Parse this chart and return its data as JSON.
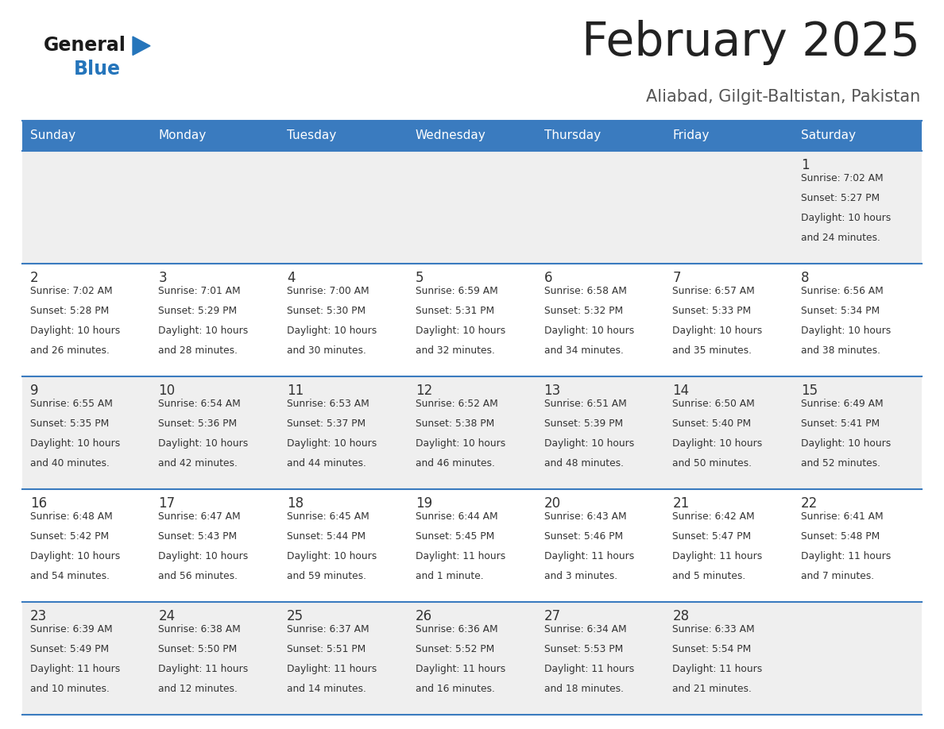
{
  "title": "February 2025",
  "subtitle": "Aliabad, Gilgit-Baltistan, Pakistan",
  "days_of_week": [
    "Sunday",
    "Monday",
    "Tuesday",
    "Wednesday",
    "Thursday",
    "Friday",
    "Saturday"
  ],
  "header_bg": "#3a7bbf",
  "header_text": "#ffffff",
  "cell_bg_odd": "#efefef",
  "cell_bg_even": "#ffffff",
  "cell_border": "#3a7bbf",
  "day_num_color": "#333333",
  "text_color": "#333333",
  "title_color": "#222222",
  "subtitle_color": "#555555",
  "logo_general_color": "#1a1a1a",
  "logo_blue_color": "#2575bb",
  "fig_width": 11.88,
  "fig_height": 9.18,
  "calendar_data": [
    {
      "day": 1,
      "col": 6,
      "row": 0,
      "sunrise": "7:02 AM",
      "sunset": "5:27 PM",
      "daylight_line1": "Daylight: 10 hours",
      "daylight_line2": "and 24 minutes."
    },
    {
      "day": 2,
      "col": 0,
      "row": 1,
      "sunrise": "7:02 AM",
      "sunset": "5:28 PM",
      "daylight_line1": "Daylight: 10 hours",
      "daylight_line2": "and 26 minutes."
    },
    {
      "day": 3,
      "col": 1,
      "row": 1,
      "sunrise": "7:01 AM",
      "sunset": "5:29 PM",
      "daylight_line1": "Daylight: 10 hours",
      "daylight_line2": "and 28 minutes."
    },
    {
      "day": 4,
      "col": 2,
      "row": 1,
      "sunrise": "7:00 AM",
      "sunset": "5:30 PM",
      "daylight_line1": "Daylight: 10 hours",
      "daylight_line2": "and 30 minutes."
    },
    {
      "day": 5,
      "col": 3,
      "row": 1,
      "sunrise": "6:59 AM",
      "sunset": "5:31 PM",
      "daylight_line1": "Daylight: 10 hours",
      "daylight_line2": "and 32 minutes."
    },
    {
      "day": 6,
      "col": 4,
      "row": 1,
      "sunrise": "6:58 AM",
      "sunset": "5:32 PM",
      "daylight_line1": "Daylight: 10 hours",
      "daylight_line2": "and 34 minutes."
    },
    {
      "day": 7,
      "col": 5,
      "row": 1,
      "sunrise": "6:57 AM",
      "sunset": "5:33 PM",
      "daylight_line1": "Daylight: 10 hours",
      "daylight_line2": "and 35 minutes."
    },
    {
      "day": 8,
      "col": 6,
      "row": 1,
      "sunrise": "6:56 AM",
      "sunset": "5:34 PM",
      "daylight_line1": "Daylight: 10 hours",
      "daylight_line2": "and 38 minutes."
    },
    {
      "day": 9,
      "col": 0,
      "row": 2,
      "sunrise": "6:55 AM",
      "sunset": "5:35 PM",
      "daylight_line1": "Daylight: 10 hours",
      "daylight_line2": "and 40 minutes."
    },
    {
      "day": 10,
      "col": 1,
      "row": 2,
      "sunrise": "6:54 AM",
      "sunset": "5:36 PM",
      "daylight_line1": "Daylight: 10 hours",
      "daylight_line2": "and 42 minutes."
    },
    {
      "day": 11,
      "col": 2,
      "row": 2,
      "sunrise": "6:53 AM",
      "sunset": "5:37 PM",
      "daylight_line1": "Daylight: 10 hours",
      "daylight_line2": "and 44 minutes."
    },
    {
      "day": 12,
      "col": 3,
      "row": 2,
      "sunrise": "6:52 AM",
      "sunset": "5:38 PM",
      "daylight_line1": "Daylight: 10 hours",
      "daylight_line2": "and 46 minutes."
    },
    {
      "day": 13,
      "col": 4,
      "row": 2,
      "sunrise": "6:51 AM",
      "sunset": "5:39 PM",
      "daylight_line1": "Daylight: 10 hours",
      "daylight_line2": "and 48 minutes."
    },
    {
      "day": 14,
      "col": 5,
      "row": 2,
      "sunrise": "6:50 AM",
      "sunset": "5:40 PM",
      "daylight_line1": "Daylight: 10 hours",
      "daylight_line2": "and 50 minutes."
    },
    {
      "day": 15,
      "col": 6,
      "row": 2,
      "sunrise": "6:49 AM",
      "sunset": "5:41 PM",
      "daylight_line1": "Daylight: 10 hours",
      "daylight_line2": "and 52 minutes."
    },
    {
      "day": 16,
      "col": 0,
      "row": 3,
      "sunrise": "6:48 AM",
      "sunset": "5:42 PM",
      "daylight_line1": "Daylight: 10 hours",
      "daylight_line2": "and 54 minutes."
    },
    {
      "day": 17,
      "col": 1,
      "row": 3,
      "sunrise": "6:47 AM",
      "sunset": "5:43 PM",
      "daylight_line1": "Daylight: 10 hours",
      "daylight_line2": "and 56 minutes."
    },
    {
      "day": 18,
      "col": 2,
      "row": 3,
      "sunrise": "6:45 AM",
      "sunset": "5:44 PM",
      "daylight_line1": "Daylight: 10 hours",
      "daylight_line2": "and 59 minutes."
    },
    {
      "day": 19,
      "col": 3,
      "row": 3,
      "sunrise": "6:44 AM",
      "sunset": "5:45 PM",
      "daylight_line1": "Daylight: 11 hours",
      "daylight_line2": "and 1 minute."
    },
    {
      "day": 20,
      "col": 4,
      "row": 3,
      "sunrise": "6:43 AM",
      "sunset": "5:46 PM",
      "daylight_line1": "Daylight: 11 hours",
      "daylight_line2": "and 3 minutes."
    },
    {
      "day": 21,
      "col": 5,
      "row": 3,
      "sunrise": "6:42 AM",
      "sunset": "5:47 PM",
      "daylight_line1": "Daylight: 11 hours",
      "daylight_line2": "and 5 minutes."
    },
    {
      "day": 22,
      "col": 6,
      "row": 3,
      "sunrise": "6:41 AM",
      "sunset": "5:48 PM",
      "daylight_line1": "Daylight: 11 hours",
      "daylight_line2": "and 7 minutes."
    },
    {
      "day": 23,
      "col": 0,
      "row": 4,
      "sunrise": "6:39 AM",
      "sunset": "5:49 PM",
      "daylight_line1": "Daylight: 11 hours",
      "daylight_line2": "and 10 minutes."
    },
    {
      "day": 24,
      "col": 1,
      "row": 4,
      "sunrise": "6:38 AM",
      "sunset": "5:50 PM",
      "daylight_line1": "Daylight: 11 hours",
      "daylight_line2": "and 12 minutes."
    },
    {
      "day": 25,
      "col": 2,
      "row": 4,
      "sunrise": "6:37 AM",
      "sunset": "5:51 PM",
      "daylight_line1": "Daylight: 11 hours",
      "daylight_line2": "and 14 minutes."
    },
    {
      "day": 26,
      "col": 3,
      "row": 4,
      "sunrise": "6:36 AM",
      "sunset": "5:52 PM",
      "daylight_line1": "Daylight: 11 hours",
      "daylight_line2": "and 16 minutes."
    },
    {
      "day": 27,
      "col": 4,
      "row": 4,
      "sunrise": "6:34 AM",
      "sunset": "5:53 PM",
      "daylight_line1": "Daylight: 11 hours",
      "daylight_line2": "and 18 minutes."
    },
    {
      "day": 28,
      "col": 5,
      "row": 4,
      "sunrise": "6:33 AM",
      "sunset": "5:54 PM",
      "daylight_line1": "Daylight: 11 hours",
      "daylight_line2": "and 21 minutes."
    }
  ]
}
